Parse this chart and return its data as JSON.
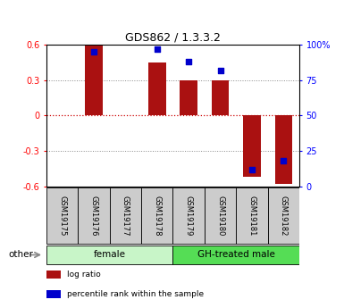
{
  "title": "GDS862 / 1.3.3.2",
  "samples": [
    "GSM19175",
    "GSM19176",
    "GSM19177",
    "GSM19178",
    "GSM19179",
    "GSM19180",
    "GSM19181",
    "GSM19182"
  ],
  "log_ratios": [
    0.0,
    0.6,
    0.0,
    0.45,
    0.3,
    0.3,
    -0.52,
    -0.58
  ],
  "percentile_ranks": [
    null,
    95,
    null,
    97,
    88,
    82,
    12,
    18
  ],
  "groups": [
    {
      "label": "female",
      "start": 0,
      "end": 4,
      "color": "#c8f5c8"
    },
    {
      "label": "GH-treated male",
      "start": 4,
      "end": 8,
      "color": "#55dd55"
    }
  ],
  "bar_color": "#aa1111",
  "dot_color": "#0000cc",
  "ylim_left": [
    -0.6,
    0.6
  ],
  "ylim_right": [
    0,
    100
  ],
  "yticks_left": [
    -0.6,
    -0.3,
    0.0,
    0.3,
    0.6
  ],
  "yticks_right": [
    0,
    25,
    50,
    75,
    100
  ],
  "ytick_labels_left": [
    "-0.6",
    "-0.3",
    "0",
    "0.3",
    "0.6"
  ],
  "ytick_labels_right": [
    "0",
    "25",
    "50",
    "75",
    "100%"
  ],
  "hlines_dotted": [
    -0.3,
    0.3
  ],
  "zero_line_color": "#cc0000",
  "grid_color": "#888888",
  "bar_width": 0.55,
  "sample_box_color": "#cccccc",
  "legend_items": [
    {
      "label": "log ratio",
      "color": "#aa1111"
    },
    {
      "label": "percentile rank within the sample",
      "color": "#0000cc"
    }
  ],
  "other_label": "other",
  "arrow_color": "#888888"
}
